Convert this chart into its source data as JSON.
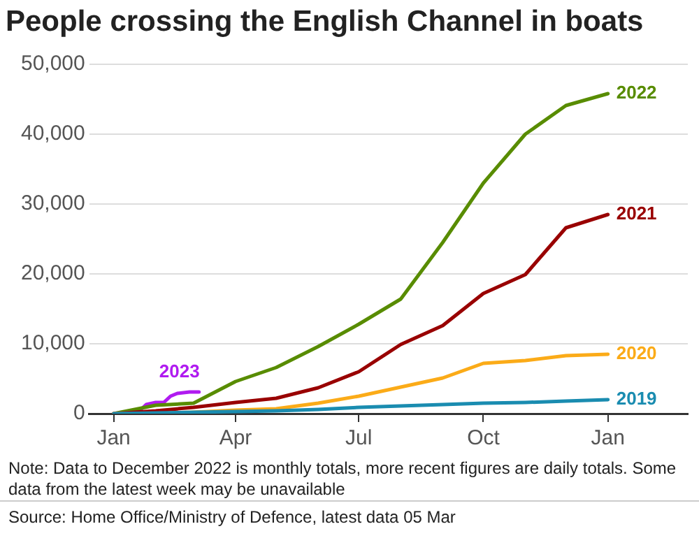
{
  "chart_data": {
    "type": "line",
    "title": "People crossing the English Channel in boats",
    "x": [
      "2022-01-01",
      "2022-02-01",
      "2022-03-01",
      "2022-04-01",
      "2022-05-01",
      "2022-06-01",
      "2022-07-01",
      "2022-08-01",
      "2022-09-01",
      "2022-10-01",
      "2022-11-01",
      "2022-12-01",
      "2023-01-01"
    ],
    "series": [
      {
        "name": "2019",
        "color": "#1a8cb0",
        "values": [
          0,
          100,
          200,
          300,
          400,
          600,
          900,
          1100,
          1300,
          1500,
          1600,
          1800,
          2000
        ]
      },
      {
        "name": "2020",
        "color": "#fbab18",
        "values": [
          0,
          0,
          200,
          500,
          700,
          1500,
          2500,
          3800,
          5100,
          7200,
          7600,
          8300,
          8500
        ]
      },
      {
        "name": "2021",
        "color": "#990000",
        "values": [
          0,
          400,
          900,
          1600,
          2200,
          3700,
          6000,
          9900,
          12600,
          17200,
          19900,
          26600,
          28500
        ]
      },
      {
        "name": "2022",
        "color": "#588c00",
        "values": [
          0,
          1200,
          1500,
          4600,
          6600,
          9600,
          12800,
          16400,
          24500,
          33000,
          40000,
          44100,
          45800
        ]
      },
      {
        "name": "2023",
        "color": "#b01bf0",
        "x": [
          "2022-01-01",
          "2022-01-20",
          "2022-01-25",
          "2022-02-01",
          "2022-02-07",
          "2022-02-12",
          "2022-02-17",
          "2022-02-26",
          "2022-03-05"
        ],
        "values": [
          0,
          400,
          1300,
          1600,
          1600,
          2500,
          2900,
          3100,
          3100
        ]
      }
    ],
    "xlim": [
      "2021-12-14",
      "2023-03-01"
    ],
    "xticks": [
      {
        "value": "2022-01-01",
        "label": "Jan"
      },
      {
        "value": "2022-04-01",
        "label": "Apr"
      },
      {
        "value": "2022-07-01",
        "label": "Jul"
      },
      {
        "value": "2022-10-01",
        "label": "Oct"
      },
      {
        "value": "2023-01-01",
        "label": "Jan"
      }
    ],
    "ylim": [
      0,
      50000
    ],
    "yticks": [
      0,
      {
        "value": 10000,
        "label": "10,000"
      },
      {
        "value": 20000,
        "label": "20,000"
      },
      {
        "value": 30000,
        "label": "30,000"
      },
      {
        "value": 40000,
        "label": "40,000"
      },
      {
        "value": 50000,
        "label": "50,000"
      }
    ],
    "grid": "y",
    "legend": false,
    "marker": "none",
    "line_style": "solid",
    "annotations": [
      "Note: Data to December 2022 is monthly totals, more recent figures are daily totals. Some data from the latest week may be unavailable",
      "Source: Home Office/Ministry of Defence, latest data 05 Mar"
    ]
  }
}
